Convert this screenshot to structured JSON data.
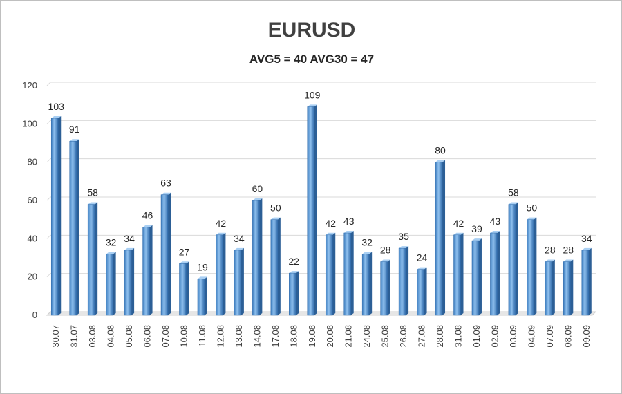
{
  "chart_data": {
    "type": "bar",
    "title": "EURUSD",
    "subtitle": "AVG5 = 40 AVG30 = 47",
    "xlabel": "",
    "ylabel": "",
    "ylim": [
      0,
      120
    ],
    "yticks": [
      0,
      20,
      40,
      60,
      80,
      100,
      120
    ],
    "grid": true,
    "legend": "none",
    "bar_color": "#5b9bd5",
    "categories": [
      "30.07",
      "31.07",
      "03.08",
      "04.08",
      "05.08",
      "06.08",
      "07.08",
      "10.08",
      "11.08",
      "12.08",
      "13.08",
      "14.08",
      "17.08",
      "18.08",
      "19.08",
      "20.08",
      "21.08",
      "24.08",
      "25.08",
      "26.08",
      "27.08",
      "28.08",
      "31.08",
      "01.09",
      "02.09",
      "03.09",
      "04.09",
      "07.09",
      "08.09",
      "09.09"
    ],
    "values": [
      103,
      91,
      58,
      32,
      34,
      46,
      63,
      27,
      19,
      42,
      34,
      60,
      50,
      22,
      109,
      42,
      43,
      32,
      28,
      35,
      24,
      80,
      42,
      39,
      43,
      58,
      50,
      28,
      28,
      34
    ]
  }
}
